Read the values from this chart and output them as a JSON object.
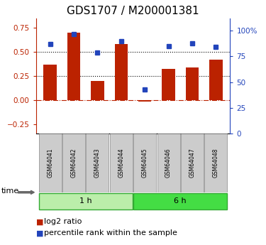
{
  "title": "GDS1707 / M200001381",
  "samples": [
    "GSM64041",
    "GSM64042",
    "GSM64043",
    "GSM64044",
    "GSM64045",
    "GSM64046",
    "GSM64047",
    "GSM64048"
  ],
  "log2_ratio": [
    0.37,
    0.7,
    0.2,
    0.58,
    -0.02,
    0.32,
    0.34,
    0.42
  ],
  "percentile_rank": [
    87,
    97,
    79,
    90,
    43,
    85,
    88,
    84
  ],
  "groups": [
    {
      "label": "1 h",
      "start": 0,
      "end": 4
    },
    {
      "label": "6 h",
      "start": 4,
      "end": 8
    }
  ],
  "bar_color": "#bb2200",
  "dot_color": "#2244bb",
  "bar_width": 0.55,
  "ylim_left": [
    -0.35,
    0.85
  ],
  "ylim_right": [
    0,
    112
  ],
  "yticks_left": [
    -0.25,
    0,
    0.25,
    0.5,
    0.75
  ],
  "yticks_right": [
    0,
    25,
    50,
    75,
    100
  ],
  "ytick_right_labels": [
    "0",
    "25",
    "50",
    "75",
    "100%"
  ],
  "hline_y": [
    0.25,
    0.5
  ],
  "group_colors": [
    "#bbeeaa",
    "#44dd44"
  ],
  "group_edge_color": "#33aa33",
  "sample_box_color": "#cccccc",
  "background_color": "#ffffff",
  "title_fontsize": 11,
  "tick_fontsize": 7.5,
  "sample_fontsize": 5.5,
  "group_fontsize": 8,
  "legend_fontsize": 8
}
